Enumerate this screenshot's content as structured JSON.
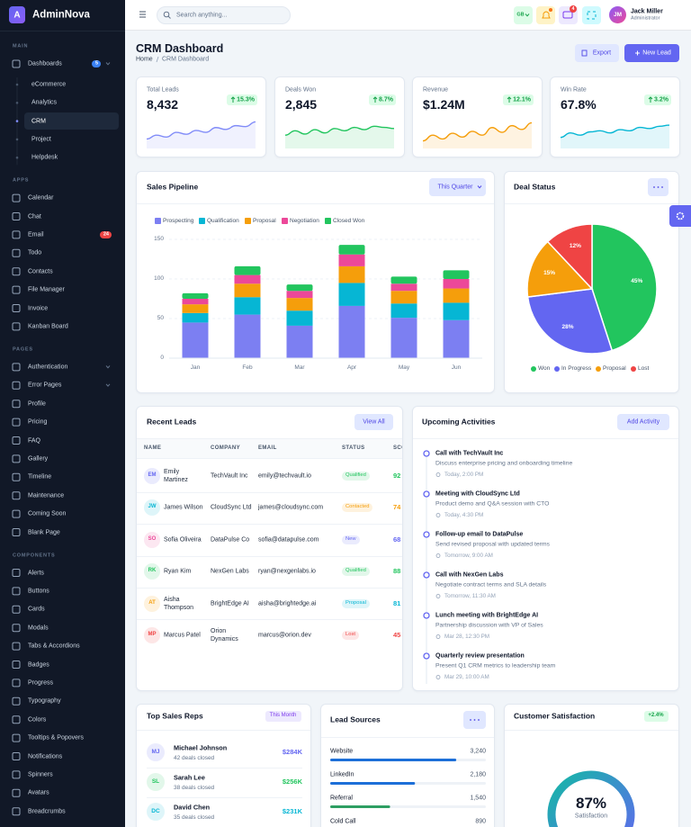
{
  "sidebar": {
    "logo": "A",
    "brand": "AdminNova",
    "active_child": 2,
    "sections": [
      {
        "title": "MAIN",
        "items": [
          {
            "label": "Dashboards",
            "badge": 5,
            "badge_color": "#3b82f6",
            "submenu": true,
            "children": [
              "eCommerce",
              "Analytics",
              "CRM",
              "Project",
              "Helpdesk"
            ]
          }
        ]
      },
      {
        "title": "APPS",
        "items": [
          {
            "label": "Calendar"
          },
          {
            "label": "Chat"
          },
          {
            "label": "Email",
            "badge": 24,
            "badge_color": "#ef4444"
          },
          {
            "label": "Todo"
          },
          {
            "label": "Contacts"
          },
          {
            "label": "File Manager"
          },
          {
            "label": "Invoice"
          },
          {
            "label": "Kanban Board"
          }
        ]
      },
      {
        "title": "PAGES",
        "items": [
          {
            "label": "Authentication",
            "submenu": true
          },
          {
            "label": "Error Pages",
            "submenu": true
          },
          {
            "label": "Profile"
          },
          {
            "label": "Pricing"
          },
          {
            "label": "FAQ"
          },
          {
            "label": "Gallery"
          },
          {
            "label": "Timeline"
          },
          {
            "label": "Maintenance"
          },
          {
            "label": "Coming Soon"
          },
          {
            "label": "Blank Page"
          }
        ]
      },
      {
        "title": "COMPONENTS",
        "items": [
          {
            "label": "Alerts"
          },
          {
            "label": "Buttons"
          },
          {
            "label": "Cards"
          },
          {
            "label": "Modals"
          },
          {
            "label": "Tabs & Accordions"
          },
          {
            "label": "Badges"
          },
          {
            "label": "Progress"
          },
          {
            "label": "Typography"
          },
          {
            "label": "Colors"
          },
          {
            "label": "Tooltips & Popovers"
          },
          {
            "label": "Notifications"
          },
          {
            "label": "Spinners"
          },
          {
            "label": "Avatars"
          },
          {
            "label": "Breadcrumbs"
          }
        ]
      }
    ]
  },
  "header": {
    "search_placeholder": "Search anything...",
    "language": "GB",
    "messages": 4,
    "user": {
      "initials": "JM",
      "name": "Jack Miller",
      "role": "Administrator"
    }
  },
  "page": {
    "title": "CRM Dashboard",
    "breadcrumb": [
      "Home",
      "CRM Dashboard"
    ],
    "actions": [
      "Export",
      "New Lead"
    ]
  },
  "stats": [
    {
      "label": "Total Leads",
      "value": "8,432",
      "change": "15.3%",
      "color": "#818cf8",
      "trend": [
        10,
        14,
        12,
        17,
        15,
        19,
        17,
        22,
        20,
        24,
        23,
        28
      ],
      "ylim": [
        0,
        35
      ]
    },
    {
      "label": "Deals Won",
      "value": "2,845",
      "change": "8.7%",
      "color": "#22c55e",
      "trend": [
        12,
        16,
        13,
        17,
        14,
        18,
        16,
        19,
        17,
        20,
        19,
        18
      ],
      "ylim": [
        0,
        30
      ]
    },
    {
      "label": "Revenue",
      "value": "$1.24M",
      "change": "12.1%",
      "color": "#f59e0b",
      "trend": [
        8,
        14,
        10,
        16,
        12,
        18,
        14,
        22,
        17,
        24,
        20,
        27
      ],
      "ylim": [
        0,
        35
      ]
    },
    {
      "label": "Win Rate",
      "value": "67.8%",
      "change": "3.2%",
      "color": "#06b6d4",
      "trend": [
        10,
        14,
        12,
        15,
        16,
        14,
        17,
        16,
        19,
        18,
        20,
        21
      ],
      "ylim": [
        0,
        30
      ]
    }
  ],
  "sales_pipeline": {
    "type": "bar",
    "stacked": true,
    "title": "Sales Pipeline",
    "filter": "This Quarter",
    "categories": [
      "Jan",
      "Feb",
      "Mar",
      "Apr",
      "May",
      "Jun"
    ],
    "series": [
      {
        "name": "Prospecting",
        "color": "#7c7ff2",
        "values": [
          45,
          55,
          41,
          66,
          51,
          48
        ]
      },
      {
        "name": "Qualification",
        "color": "#06b6d4",
        "values": [
          12,
          22,
          19,
          29,
          18,
          22
        ]
      },
      {
        "name": "Proposal",
        "color": "#f59e0b",
        "values": [
          11,
          17,
          16,
          21,
          16,
          18
        ]
      },
      {
        "name": "Negotiation",
        "color": "#ec4899",
        "values": [
          7,
          11,
          9,
          15,
          9,
          12
        ]
      },
      {
        "name": "Closed Won",
        "color": "#22c55e",
        "values": [
          7,
          11,
          8,
          12,
          9,
          11
        ]
      }
    ],
    "ylim": [
      0,
      150
    ],
    "yticks": [
      0,
      50,
      100,
      150
    ],
    "grid": true
  },
  "deal_status": {
    "type": "pie",
    "title": "Deal Status",
    "categories": [
      "Won",
      "In Progress",
      "Proposal",
      "Lost"
    ],
    "values": [
      45,
      28,
      15,
      12
    ],
    "value_labels": [
      "45%",
      "28%",
      "15%",
      "12%"
    ],
    "colors": [
      "#22c55e",
      "#6366f1",
      "#f59e0b",
      "#ef4444"
    ]
  },
  "recent_leads": {
    "title": "Recent Leads",
    "action": "View All",
    "columns": [
      "NAME",
      "COMPANY",
      "EMAIL",
      "STATUS",
      "SCORE"
    ],
    "rows": [
      {
        "initials": "EM",
        "name": "Emily Martinez",
        "company": "TechVault Inc",
        "email": "emily@techvault.io",
        "status": "Qualified",
        "score": 92,
        "avatar_color": "#6366f1",
        "status_color": "#22c55e"
      },
      {
        "initials": "JW",
        "name": "James Wilson",
        "company": "CloudSync Ltd",
        "email": "james@cloudsync.com",
        "status": "Contacted",
        "score": 74,
        "avatar_color": "#06b6d4",
        "status_color": "#f59e0b"
      },
      {
        "initials": "SO",
        "name": "Sofia Oliveira",
        "company": "DataPulse Co",
        "email": "sofia@datapulse.com",
        "status": "New",
        "score": 68,
        "avatar_color": "#ec4899",
        "status_color": "#6366f1"
      },
      {
        "initials": "RK",
        "name": "Ryan Kim",
        "company": "NexGen Labs",
        "email": "ryan@nexgenlabs.io",
        "status": "Qualified",
        "score": 88,
        "avatar_color": "#22c55e",
        "status_color": "#22c55e"
      },
      {
        "initials": "AT",
        "name": "Aisha Thompson",
        "company": "BrightEdge AI",
        "email": "aisha@brightedge.ai",
        "status": "Proposal",
        "score": 81,
        "avatar_color": "#f59e0b",
        "status_color": "#06b6d4"
      },
      {
        "initials": "MP",
        "name": "Marcus Patel",
        "company": "Orion Dynamics",
        "email": "marcus@orion.dev",
        "status": "Lost",
        "score": 45,
        "avatar_color": "#ef4444",
        "status_color": "#ef4444"
      }
    ]
  },
  "activities": {
    "title": "Upcoming Activities",
    "action": "Add Activity",
    "items": [
      {
        "title": "Call with TechVault Inc",
        "desc": "Discuss enterprise pricing and onboarding timeline",
        "time": "Today, 2:00 PM"
      },
      {
        "title": "Meeting with CloudSync Ltd",
        "desc": "Product demo and Q&A session with CTO",
        "time": "Today, 4:30 PM"
      },
      {
        "title": "Follow-up email to DataPulse",
        "desc": "Send revised proposal with updated terms",
        "time": "Tomorrow, 9:00 AM"
      },
      {
        "title": "Call with NexGen Labs",
        "desc": "Negotiate contract terms and SLA details",
        "time": "Tomorrow, 11:30 AM"
      },
      {
        "title": "Lunch meeting with BrightEdge AI",
        "desc": "Partnership discussion with VP of Sales",
        "time": "Mar 28, 12:30 PM"
      },
      {
        "title": "Quarterly review presentation",
        "desc": "Present Q1 CRM metrics to leadership team",
        "time": "Mar 29, 10:00 AM"
      }
    ]
  },
  "top_reps": {
    "title": "Top Sales Reps",
    "filter": "This Month",
    "reps": [
      {
        "initials": "MJ",
        "name": "Michael Johnson",
        "deals": "42 deals closed",
        "revenue": "$284K",
        "color": "#6366f1"
      },
      {
        "initials": "SL",
        "name": "Sarah Lee",
        "deals": "38 deals closed",
        "revenue": "$256K",
        "color": "#22c55e"
      },
      {
        "initials": "DC",
        "name": "David Chen",
        "deals": "35 deals closed",
        "revenue": "$231K",
        "color": "#06b6d4"
      }
    ]
  },
  "lead_sources": {
    "title": "Lead Sources",
    "xlim": [
      0,
      4000
    ],
    "items": [
      {
        "label": "Website",
        "value": 3240,
        "value_label": "3,240",
        "color": "#1d6fd8"
      },
      {
        "label": "LinkedIn",
        "value": 2180,
        "value_label": "2,180",
        "color": "#1d6fd8"
      },
      {
        "label": "Referral",
        "value": 1540,
        "value_label": "1,540",
        "color": "#2e9e62"
      },
      {
        "label": "Cold Call",
        "value": 890,
        "value_label": "890",
        "color": "#f59e0b"
      }
    ]
  },
  "satisfaction": {
    "title": "Customer Satisfaction",
    "change": "+2.4%",
    "value": 87,
    "value_label": "87%",
    "caption": "Satisfaction",
    "ylim": [
      0,
      100
    ]
  }
}
